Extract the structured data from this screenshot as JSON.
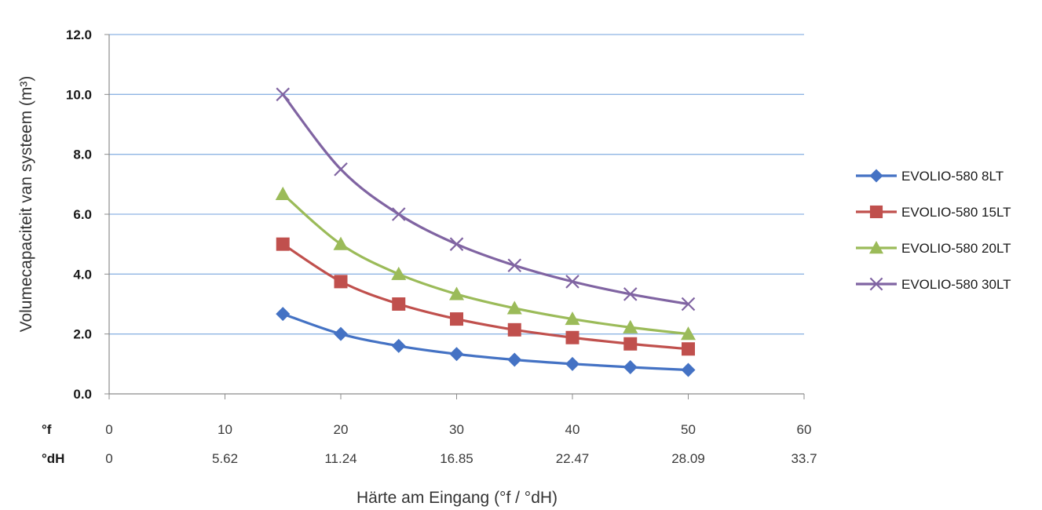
{
  "chart_data": {
    "type": "line",
    "title": "",
    "xlabel": "Härte am Eingang (°f / °dH)",
    "ylabel": "Volumecapaciteit van systeem (m³)",
    "xlim": [
      0,
      60
    ],
    "ylim": [
      0,
      12
    ],
    "y_ticks": [
      "0.0",
      "2.0",
      "4.0",
      "6.0",
      "8.0",
      "10.0",
      "12.0"
    ],
    "x_tick_rows": [
      {
        "label": "°f",
        "ticks": [
          "0",
          "10",
          "20",
          "30",
          "40",
          "50",
          "60"
        ]
      },
      {
        "label": "°dH",
        "ticks": [
          "0",
          "5.62",
          "11.24",
          "16.85",
          "22.47",
          "28.09",
          "33.7"
        ]
      }
    ],
    "grid": true,
    "legend_position": "right",
    "x": [
      15,
      20,
      25,
      30,
      35,
      40,
      45,
      50
    ],
    "series": [
      {
        "name": "EVOLIO-580  8LT",
        "marker": "diamond",
        "color": "#4472C4",
        "values": [
          2.67,
          2.0,
          1.6,
          1.33,
          1.14,
          1.0,
          0.89,
          0.8
        ]
      },
      {
        "name": "EVOLIO-580 15LT",
        "marker": "square",
        "color": "#C0504D",
        "values": [
          5.0,
          3.75,
          3.0,
          2.5,
          2.14,
          1.88,
          1.67,
          1.5
        ]
      },
      {
        "name": "EVOLIO-580 20LT",
        "marker": "triangle",
        "color": "#9BBB59",
        "values": [
          6.67,
          5.0,
          4.0,
          3.33,
          2.86,
          2.5,
          2.22,
          2.0
        ]
      },
      {
        "name": "EVOLIO-580 30LT",
        "marker": "x",
        "color": "#8064A2",
        "values": [
          10.0,
          7.5,
          6.0,
          5.0,
          4.29,
          3.75,
          3.33,
          3.0
        ]
      }
    ]
  }
}
